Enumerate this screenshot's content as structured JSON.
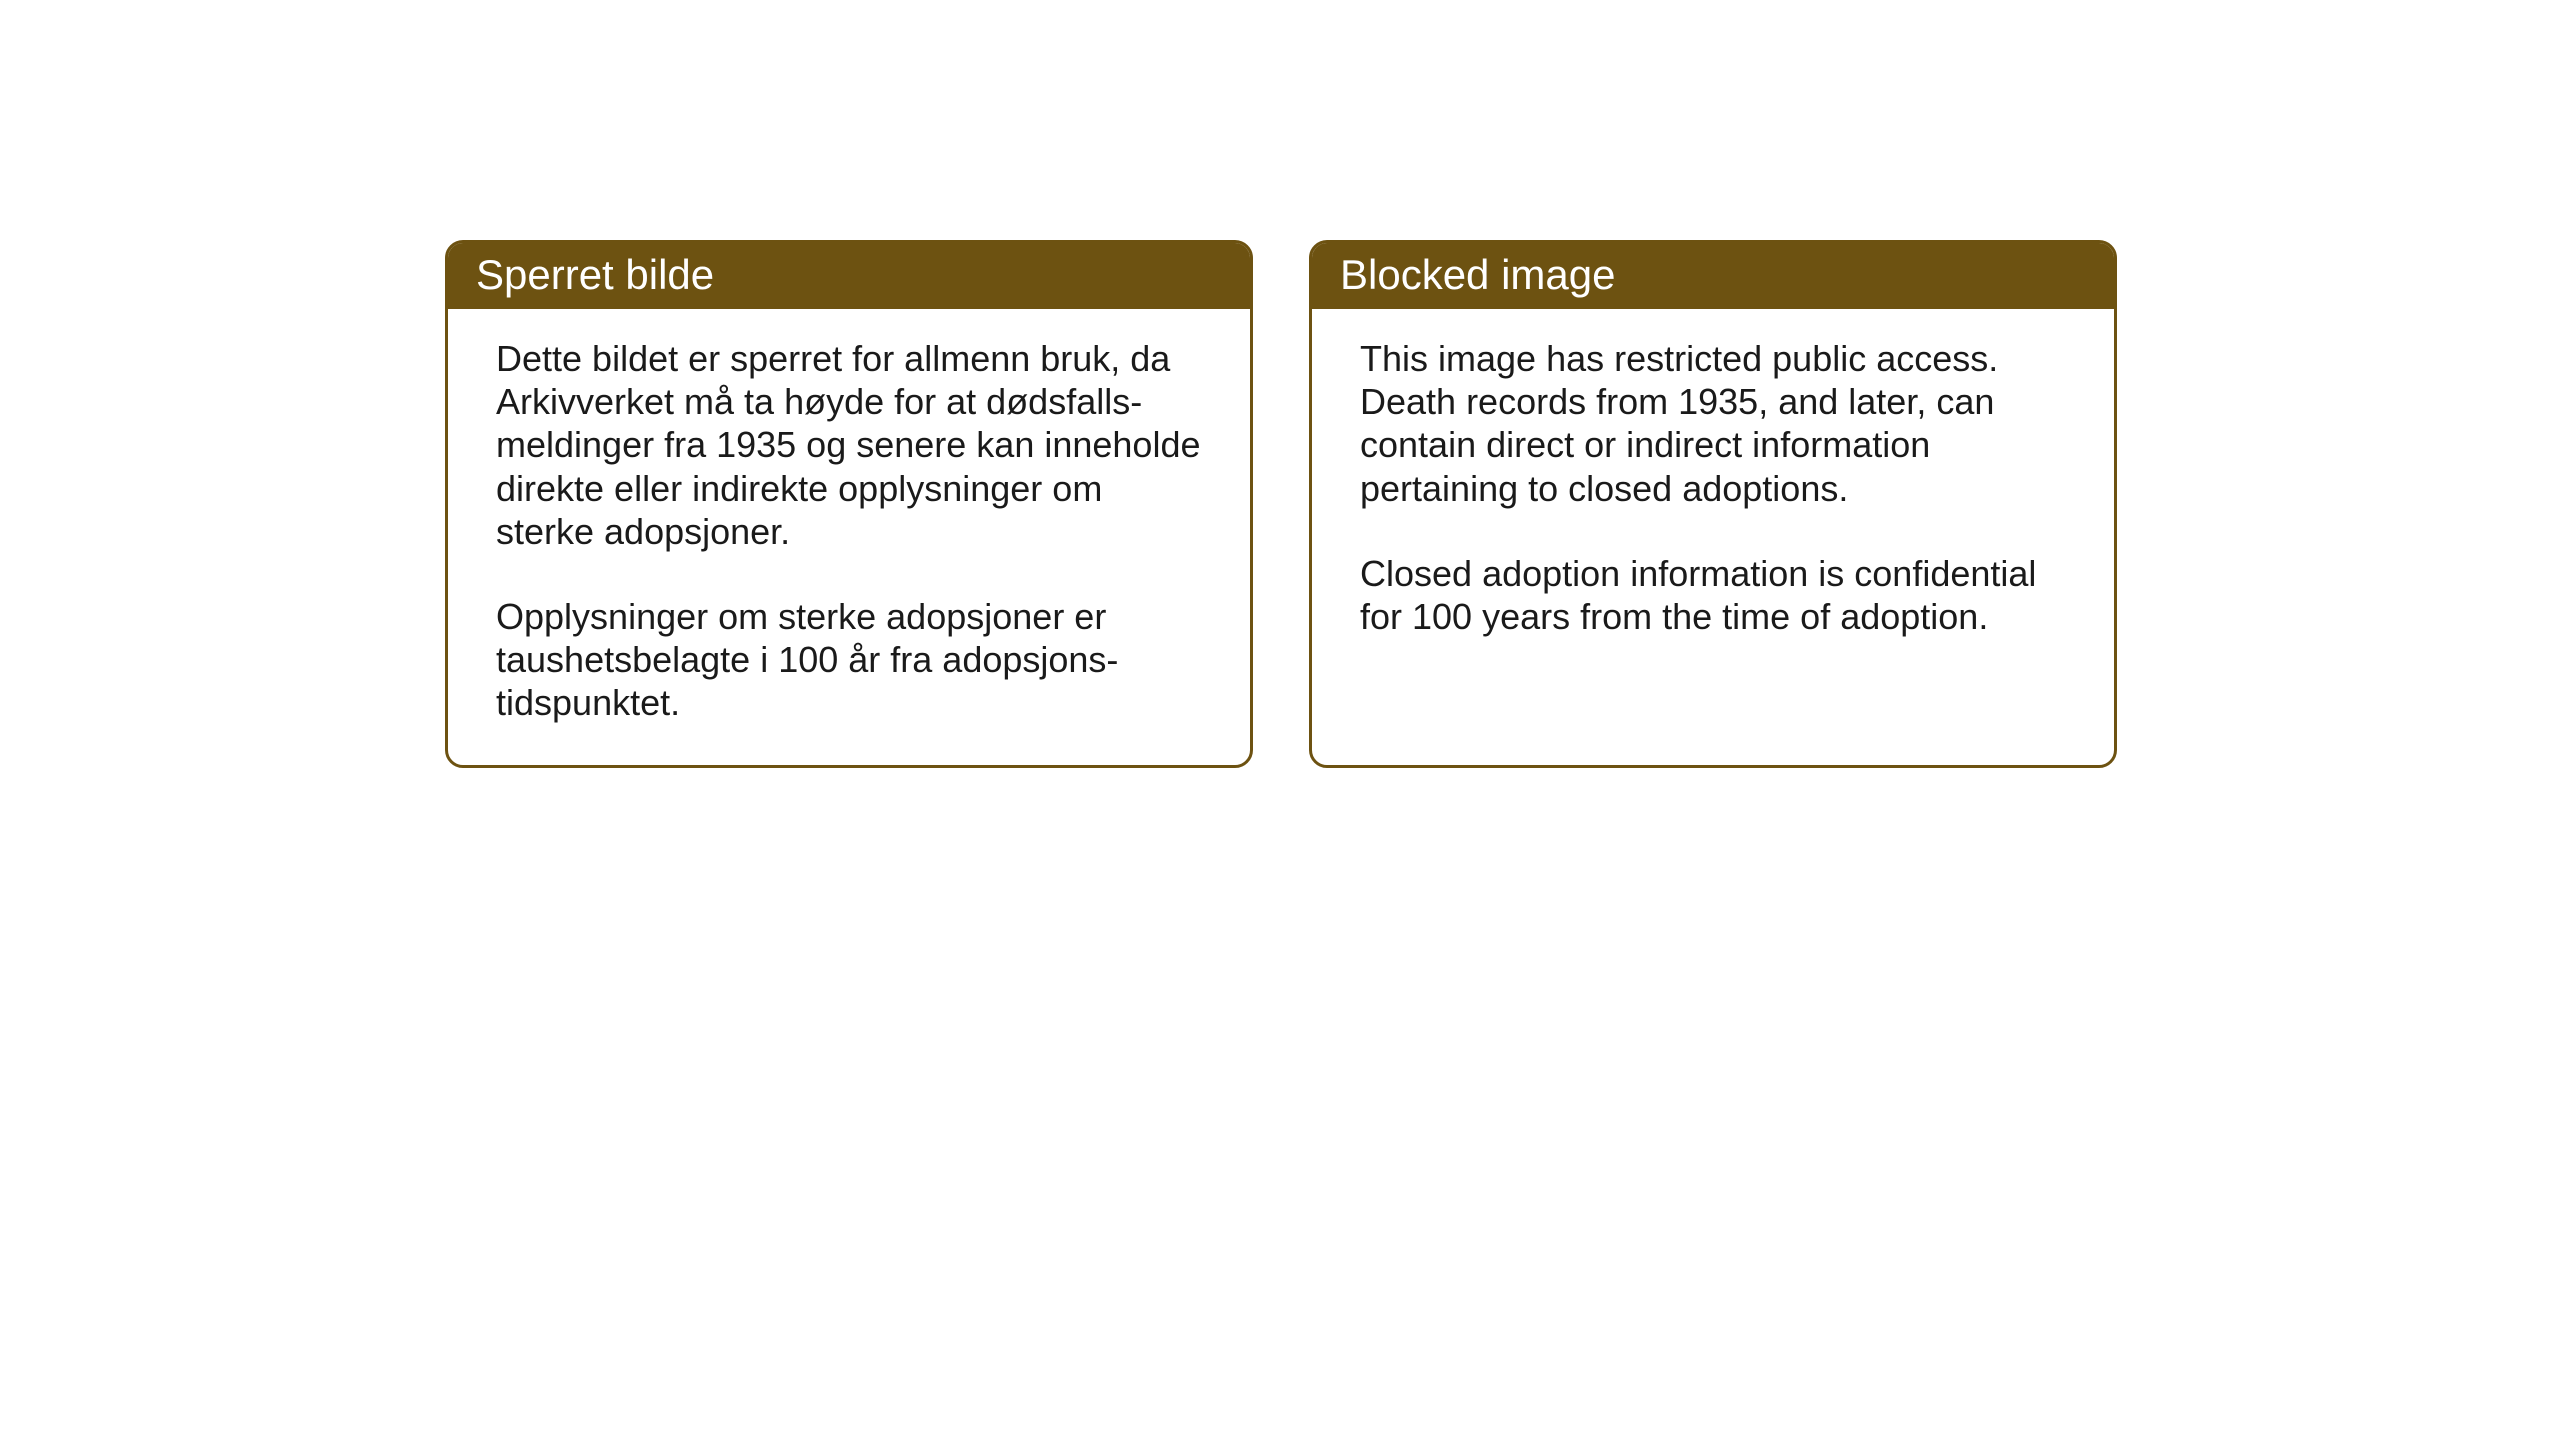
{
  "layout": {
    "background_color": "#ffffff",
    "card_border_color": "#6d5211",
    "card_border_width": 3,
    "card_border_radius": 18,
    "header_bg_color": "#6d5211",
    "header_text_color": "#ffffff",
    "body_text_color": "#1a1a1a",
    "header_font_size": 42,
    "body_font_size": 36
  },
  "cards": {
    "norwegian": {
      "title": "Sperret bilde",
      "paragraph1": "Dette bildet er sperret for allmenn bruk, da Arkivverket må ta høyde for at dødsfalls-meldinger fra 1935 og senere kan inneholde direkte eller indirekte opplysninger om sterke adopsjoner.",
      "paragraph2": "Opplysninger om sterke adopsjoner er taushetsbelagte i 100 år fra adopsjons-tidspunktet."
    },
    "english": {
      "title": "Blocked image",
      "paragraph1": "This image has restricted public access. Death records from 1935, and later, can contain direct or indirect information pertaining to closed adoptions.",
      "paragraph2": "Closed adoption information is confidential for 100 years from the time of adoption."
    }
  }
}
